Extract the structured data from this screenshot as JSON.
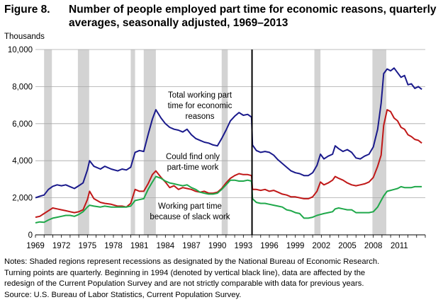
{
  "figure": {
    "label": "Figure 8.",
    "title_line1": "Number of people employed part time for economic reasons, quarterly",
    "title_line2": "averages, seasonally adjusted, 1969–2013"
  },
  "notes": [
    "Notes: Shaded regions represent recessions as designated by the National Bureau of Economic Research.",
    "Turning points are quarterly. Beginning in 1994 (denoted by vertical black line), data are affected by the",
    "redesign of the Current Population Survey and are not strictly comparable with data for previous years.",
    "Source: U.S. Bureau of Labor Statistics, Current Population Survey."
  ],
  "colors": {
    "total": "#1a1a8c",
    "could_find_only": "#c01818",
    "slack_work": "#1fa84a",
    "recession_shade": "#d3d3d3",
    "redesign_line": "#000000"
  },
  "chart_data": {
    "type": "line",
    "unit_label": "Thousands",
    "xlim": [
      1969,
      2014
    ],
    "ylim": [
      0,
      10000
    ],
    "x_ticks": [
      "1969",
      "1972",
      "1975",
      "1978",
      "1981",
      "1984",
      "1987",
      "1990",
      "1993",
      "1996",
      "1999",
      "2002",
      "2005",
      "2008",
      "2011"
    ],
    "y_ticks": [
      "0",
      "2,000",
      "4,000",
      "6,000",
      "8,000",
      "10,000"
    ],
    "grid": "horizontal",
    "recessions": [
      [
        1970.0,
        1970.9
      ],
      [
        1973.9,
        1975.2
      ],
      [
        1980.0,
        1980.5
      ],
      [
        1981.5,
        1982.9
      ],
      [
        1990.5,
        1991.2
      ],
      [
        2001.2,
        2001.9
      ],
      [
        2007.9,
        2009.5
      ]
    ],
    "redesign_line_x": 1994.0,
    "series": [
      {
        "key": "total",
        "label_lines": [
          "Total working part",
          "time for economic",
          "reasons"
        ],
        "points": [
          [
            1969.0,
            2000
          ],
          [
            1969.5,
            2080
          ],
          [
            1970.0,
            2150
          ],
          [
            1970.5,
            2450
          ],
          [
            1971.0,
            2620
          ],
          [
            1971.5,
            2700
          ],
          [
            1972.0,
            2650
          ],
          [
            1972.5,
            2700
          ],
          [
            1973.0,
            2600
          ],
          [
            1973.5,
            2500
          ],
          [
            1974.0,
            2650
          ],
          [
            1974.5,
            2800
          ],
          [
            1975.0,
            3500
          ],
          [
            1975.25,
            4000
          ],
          [
            1975.75,
            3700
          ],
          [
            1976.5,
            3550
          ],
          [
            1977.0,
            3700
          ],
          [
            1977.75,
            3550
          ],
          [
            1978.5,
            3450
          ],
          [
            1979.0,
            3550
          ],
          [
            1979.5,
            3500
          ],
          [
            1980.0,
            3650
          ],
          [
            1980.5,
            4450
          ],
          [
            1981.0,
            4550
          ],
          [
            1981.5,
            4500
          ],
          [
            1982.0,
            5400
          ],
          [
            1982.5,
            6250
          ],
          [
            1982.9,
            6750
          ],
          [
            1983.5,
            6300
          ],
          [
            1984.0,
            6000
          ],
          [
            1984.5,
            5800
          ],
          [
            1985.0,
            5700
          ],
          [
            1985.5,
            5650
          ],
          [
            1986.0,
            5550
          ],
          [
            1986.5,
            5700
          ],
          [
            1987.0,
            5400
          ],
          [
            1987.5,
            5200
          ],
          [
            1988.0,
            5100
          ],
          [
            1988.5,
            5000
          ],
          [
            1989.0,
            4950
          ],
          [
            1989.5,
            4850
          ],
          [
            1990.0,
            4800
          ],
          [
            1990.5,
            5200
          ],
          [
            1991.0,
            5650
          ],
          [
            1991.5,
            6150
          ],
          [
            1992.0,
            6400
          ],
          [
            1992.5,
            6600
          ],
          [
            1993.0,
            6450
          ],
          [
            1993.5,
            6500
          ],
          [
            1993.95,
            6350
          ],
          [
            1994.05,
            4850
          ],
          [
            1994.5,
            4550
          ],
          [
            1995.0,
            4450
          ],
          [
            1995.5,
            4500
          ],
          [
            1996.0,
            4450
          ],
          [
            1996.5,
            4300
          ],
          [
            1997.0,
            4050
          ],
          [
            1997.5,
            3850
          ],
          [
            1998.0,
            3650
          ],
          [
            1998.5,
            3450
          ],
          [
            1999.0,
            3350
          ],
          [
            1999.5,
            3300
          ],
          [
            2000.0,
            3200
          ],
          [
            2000.5,
            3200
          ],
          [
            2001.0,
            3350
          ],
          [
            2001.5,
            3750
          ],
          [
            2001.9,
            4350
          ],
          [
            2002.3,
            4100
          ],
          [
            2002.8,
            4250
          ],
          [
            2003.3,
            4350
          ],
          [
            2003.6,
            4800
          ],
          [
            2004.0,
            4650
          ],
          [
            2004.5,
            4500
          ],
          [
            2005.0,
            4600
          ],
          [
            2005.5,
            4450
          ],
          [
            2006.0,
            4150
          ],
          [
            2006.5,
            4100
          ],
          [
            2007.0,
            4250
          ],
          [
            2007.5,
            4350
          ],
          [
            2008.0,
            4750
          ],
          [
            2008.5,
            5700
          ],
          [
            2008.9,
            7100
          ],
          [
            2009.2,
            8700
          ],
          [
            2009.6,
            8950
          ],
          [
            2010.0,
            8850
          ],
          [
            2010.4,
            9000
          ],
          [
            2010.8,
            8750
          ],
          [
            2011.2,
            8500
          ],
          [
            2011.6,
            8600
          ],
          [
            2012.0,
            8100
          ],
          [
            2012.4,
            8150
          ],
          [
            2012.8,
            7900
          ],
          [
            2013.2,
            8000
          ],
          [
            2013.6,
            7850
          ]
        ]
      },
      {
        "key": "could_find_only",
        "label_lines": [
          "Could find only",
          "part-time work"
        ],
        "points": [
          [
            1969.0,
            950
          ],
          [
            1969.5,
            1000
          ],
          [
            1970.0,
            1150
          ],
          [
            1970.5,
            1300
          ],
          [
            1971.0,
            1450
          ],
          [
            1971.5,
            1400
          ],
          [
            1972.0,
            1350
          ],
          [
            1972.5,
            1300
          ],
          [
            1973.0,
            1250
          ],
          [
            1973.5,
            1200
          ],
          [
            1974.0,
            1250
          ],
          [
            1974.5,
            1350
          ],
          [
            1975.0,
            1900
          ],
          [
            1975.25,
            2350
          ],
          [
            1975.75,
            1950
          ],
          [
            1976.5,
            1750
          ],
          [
            1977.0,
            1700
          ],
          [
            1977.75,
            1650
          ],
          [
            1978.5,
            1550
          ],
          [
            1979.0,
            1550
          ],
          [
            1979.5,
            1500
          ],
          [
            1980.0,
            1700
          ],
          [
            1980.5,
            2450
          ],
          [
            1981.0,
            2350
          ],
          [
            1981.5,
            2350
          ],
          [
            1982.0,
            2750
          ],
          [
            1982.5,
            3250
          ],
          [
            1982.9,
            3450
          ],
          [
            1983.5,
            3100
          ],
          [
            1984.0,
            2850
          ],
          [
            1984.5,
            2550
          ],
          [
            1985.0,
            2650
          ],
          [
            1985.5,
            2450
          ],
          [
            1986.0,
            2550
          ],
          [
            1986.5,
            2500
          ],
          [
            1987.0,
            2450
          ],
          [
            1987.5,
            2350
          ],
          [
            1988.0,
            2300
          ],
          [
            1988.5,
            2350
          ],
          [
            1989.0,
            2250
          ],
          [
            1989.5,
            2250
          ],
          [
            1990.0,
            2300
          ],
          [
            1990.5,
            2500
          ],
          [
            1991.0,
            2800
          ],
          [
            1991.5,
            3050
          ],
          [
            1992.0,
            3200
          ],
          [
            1992.5,
            3300
          ],
          [
            1993.0,
            3250
          ],
          [
            1993.5,
            3250
          ],
          [
            1993.95,
            3200
          ],
          [
            1994.05,
            2450
          ],
          [
            1994.5,
            2450
          ],
          [
            1995.0,
            2400
          ],
          [
            1995.5,
            2450
          ],
          [
            1996.0,
            2350
          ],
          [
            1996.5,
            2400
          ],
          [
            1997.0,
            2300
          ],
          [
            1997.5,
            2200
          ],
          [
            1998.0,
            2150
          ],
          [
            1998.5,
            2050
          ],
          [
            1999.0,
            2050
          ],
          [
            1999.5,
            2000
          ],
          [
            2000.0,
            1950
          ],
          [
            2000.5,
            1950
          ],
          [
            2001.0,
            2050
          ],
          [
            2001.5,
            2350
          ],
          [
            2001.9,
            2850
          ],
          [
            2002.3,
            2700
          ],
          [
            2002.8,
            2800
          ],
          [
            2003.3,
            2950
          ],
          [
            2003.6,
            3150
          ],
          [
            2004.0,
            3050
          ],
          [
            2004.5,
            2950
          ],
          [
            2005.0,
            2800
          ],
          [
            2005.5,
            2700
          ],
          [
            2006.0,
            2650
          ],
          [
            2006.5,
            2700
          ],
          [
            2007.0,
            2750
          ],
          [
            2007.5,
            2850
          ],
          [
            2008.0,
            3100
          ],
          [
            2008.5,
            3700
          ],
          [
            2008.9,
            4300
          ],
          [
            2009.2,
            5900
          ],
          [
            2009.6,
            6750
          ],
          [
            2010.0,
            6650
          ],
          [
            2010.4,
            6300
          ],
          [
            2010.8,
            6150
          ],
          [
            2011.2,
            5800
          ],
          [
            2011.6,
            5700
          ],
          [
            2012.0,
            5400
          ],
          [
            2012.4,
            5300
          ],
          [
            2012.8,
            5150
          ],
          [
            2013.2,
            5100
          ],
          [
            2013.6,
            4950
          ]
        ]
      },
      {
        "key": "slack_work",
        "label_lines": [
          "Working part time",
          "because of slack work"
        ],
        "points": [
          [
            1969.0,
            650
          ],
          [
            1969.5,
            700
          ],
          [
            1970.0,
            680
          ],
          [
            1970.5,
            800
          ],
          [
            1971.0,
            900
          ],
          [
            1971.5,
            950
          ],
          [
            1972.0,
            1000
          ],
          [
            1972.5,
            1050
          ],
          [
            1973.0,
            1050
          ],
          [
            1973.5,
            1000
          ],
          [
            1974.0,
            1100
          ],
          [
            1974.5,
            1250
          ],
          [
            1975.0,
            1500
          ],
          [
            1975.25,
            1600
          ],
          [
            1975.75,
            1550
          ],
          [
            1976.5,
            1500
          ],
          [
            1977.0,
            1550
          ],
          [
            1977.75,
            1500
          ],
          [
            1978.5,
            1500
          ],
          [
            1979.0,
            1500
          ],
          [
            1979.5,
            1500
          ],
          [
            1980.0,
            1550
          ],
          [
            1980.5,
            1850
          ],
          [
            1981.0,
            1900
          ],
          [
            1981.5,
            1950
          ],
          [
            1982.0,
            2450
          ],
          [
            1982.5,
            2850
          ],
          [
            1982.9,
            3150
          ],
          [
            1983.5,
            3050
          ],
          [
            1984.0,
            2900
          ],
          [
            1984.5,
            2800
          ],
          [
            1985.0,
            2750
          ],
          [
            1985.5,
            2700
          ],
          [
            1986.0,
            2650
          ],
          [
            1986.5,
            2700
          ],
          [
            1987.0,
            2550
          ],
          [
            1987.5,
            2450
          ],
          [
            1988.0,
            2300
          ],
          [
            1988.5,
            2250
          ],
          [
            1989.0,
            2200
          ],
          [
            1989.5,
            2200
          ],
          [
            1990.0,
            2250
          ],
          [
            1990.5,
            2450
          ],
          [
            1991.0,
            2700
          ],
          [
            1991.5,
            2950
          ],
          [
            1992.0,
            2950
          ],
          [
            1992.5,
            2900
          ],
          [
            1993.0,
            2900
          ],
          [
            1993.5,
            2950
          ],
          [
            1993.95,
            2900
          ],
          [
            1994.05,
            1950
          ],
          [
            1994.5,
            1750
          ],
          [
            1995.0,
            1700
          ],
          [
            1995.5,
            1700
          ],
          [
            1996.0,
            1650
          ],
          [
            1996.5,
            1600
          ],
          [
            1997.0,
            1550
          ],
          [
            1997.5,
            1500
          ],
          [
            1998.0,
            1350
          ],
          [
            1998.5,
            1300
          ],
          [
            1999.0,
            1200
          ],
          [
            1999.5,
            1150
          ],
          [
            2000.0,
            900
          ],
          [
            2000.5,
            900
          ],
          [
            2001.0,
            950
          ],
          [
            2001.5,
            1050
          ],
          [
            2001.9,
            1100
          ],
          [
            2002.3,
            1150
          ],
          [
            2002.8,
            1200
          ],
          [
            2003.3,
            1250
          ],
          [
            2003.6,
            1400
          ],
          [
            2004.0,
            1450
          ],
          [
            2004.5,
            1400
          ],
          [
            2005.0,
            1350
          ],
          [
            2005.5,
            1350
          ],
          [
            2006.0,
            1200
          ],
          [
            2006.5,
            1200
          ],
          [
            2007.0,
            1200
          ],
          [
            2007.5,
            1200
          ],
          [
            2008.0,
            1250
          ],
          [
            2008.5,
            1500
          ],
          [
            2008.9,
            1850
          ],
          [
            2009.2,
            2100
          ],
          [
            2009.6,
            2350
          ],
          [
            2010.0,
            2400
          ],
          [
            2010.4,
            2450
          ],
          [
            2010.8,
            2500
          ],
          [
            2011.2,
            2600
          ],
          [
            2011.6,
            2550
          ],
          [
            2012.0,
            2550
          ],
          [
            2012.4,
            2550
          ],
          [
            2012.8,
            2600
          ],
          [
            2013.2,
            2600
          ],
          [
            2013.6,
            2600
          ]
        ]
      }
    ]
  }
}
